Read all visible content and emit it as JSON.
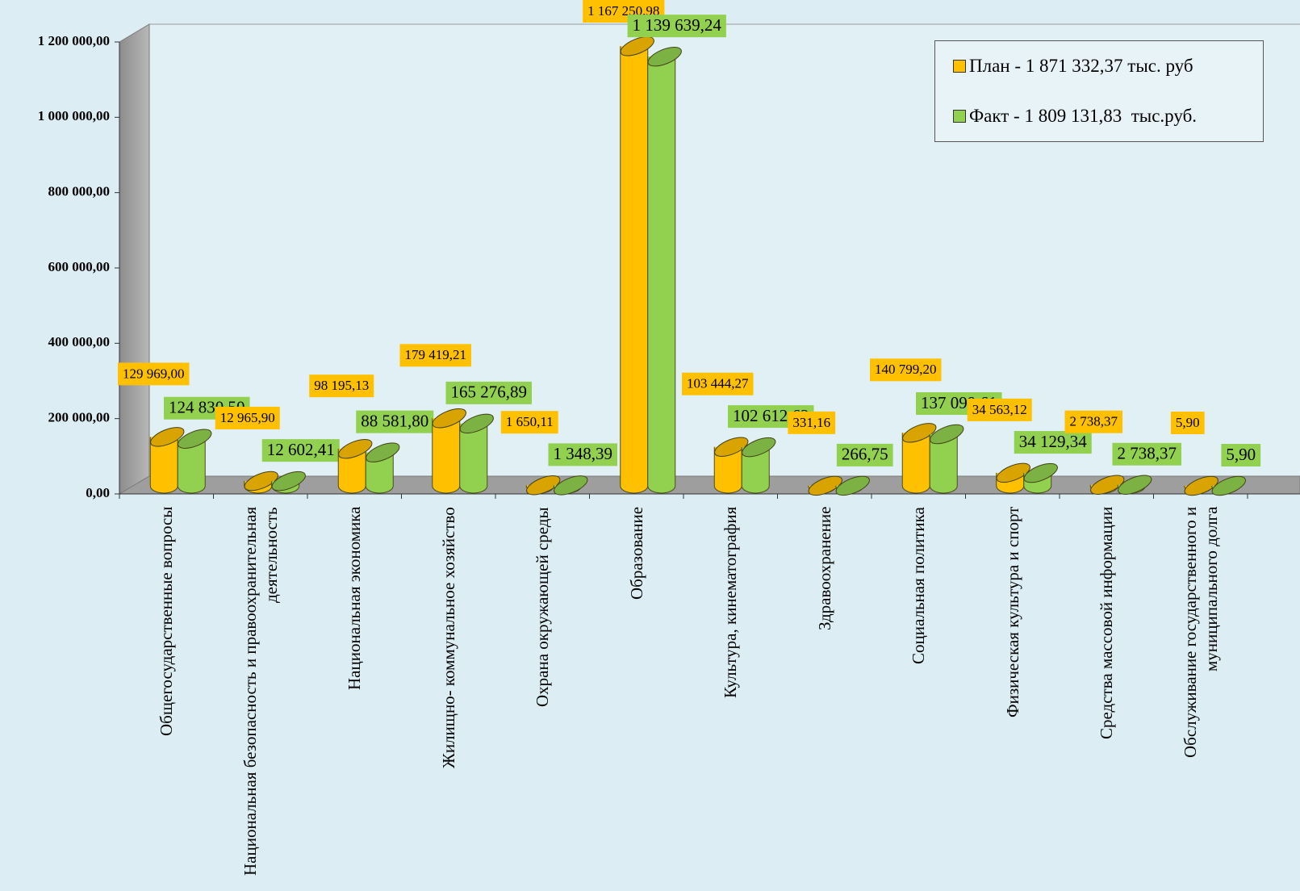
{
  "chart_data": {
    "type": "bar3d",
    "categories": [
      "Общегосударственные вопросы",
      "Национальная безопасность и правоохранительная деятельность",
      "Национальная экономика",
      "Жилищно- коммунальное хозяйство",
      "Охрана окружающей среды",
      "Образование",
      "Культура, кинематография",
      "Здравоохранение",
      "Социальная политика",
      "Физическая культура и спорт",
      "Средства массовой информации",
      "Обслуживание государственного и муниципального долга"
    ],
    "series": [
      {
        "name": "План - 1 871 332,37 тыс. руб",
        "color": "#ffc000",
        "values": [
          129969.0,
          12965.9,
          98195.13,
          179419.21,
          1650.11,
          1167250.98,
          103444.27,
          331.16,
          140799.2,
          34563.12,
          2738.37,
          5.9
        ],
        "value_labels": [
          "129 969,00",
          "12 965,90",
          "98 195,13",
          "179 419,21",
          "1 650,11",
          "1 167 250,98",
          "103 444,27",
          "331,16",
          "140 799,20",
          "34 563,12",
          "2 738,37",
          "5,90"
        ]
      },
      {
        "name": "Факт - 1 809 131,83  тыс.руб.",
        "color": "#92d050",
        "values": [
          124830.5,
          12602.41,
          88581.8,
          165276.89,
          1348.39,
          1139639.24,
          102612.63,
          266.75,
          137099.61,
          34129.34,
          2738.37,
          5.9
        ],
        "value_labels": [
          "124 830,50",
          "12 602,41",
          "88 581,80",
          "165 276,89",
          "1 348,39",
          "1 139 639,24",
          "102 612,63",
          "266,75",
          "137 099,61",
          "34 129,34",
          "2 738,37",
          "5,90"
        ]
      }
    ],
    "ylim": [
      0,
      1200000
    ],
    "yticks": [
      {
        "value": 0,
        "label": "0,00"
      },
      {
        "value": 200000,
        "label": "200 000,00"
      },
      {
        "value": 400000,
        "label": "400 000,00"
      },
      {
        "value": 600000,
        "label": "600 000,00"
      },
      {
        "value": 800000,
        "label": "800 000,00"
      },
      {
        "value": 1000000,
        "label": "1 000 000,00"
      },
      {
        "value": 1200000,
        "label": "1 200 000,00"
      }
    ],
    "grid": false,
    "legend": "top-right"
  }
}
